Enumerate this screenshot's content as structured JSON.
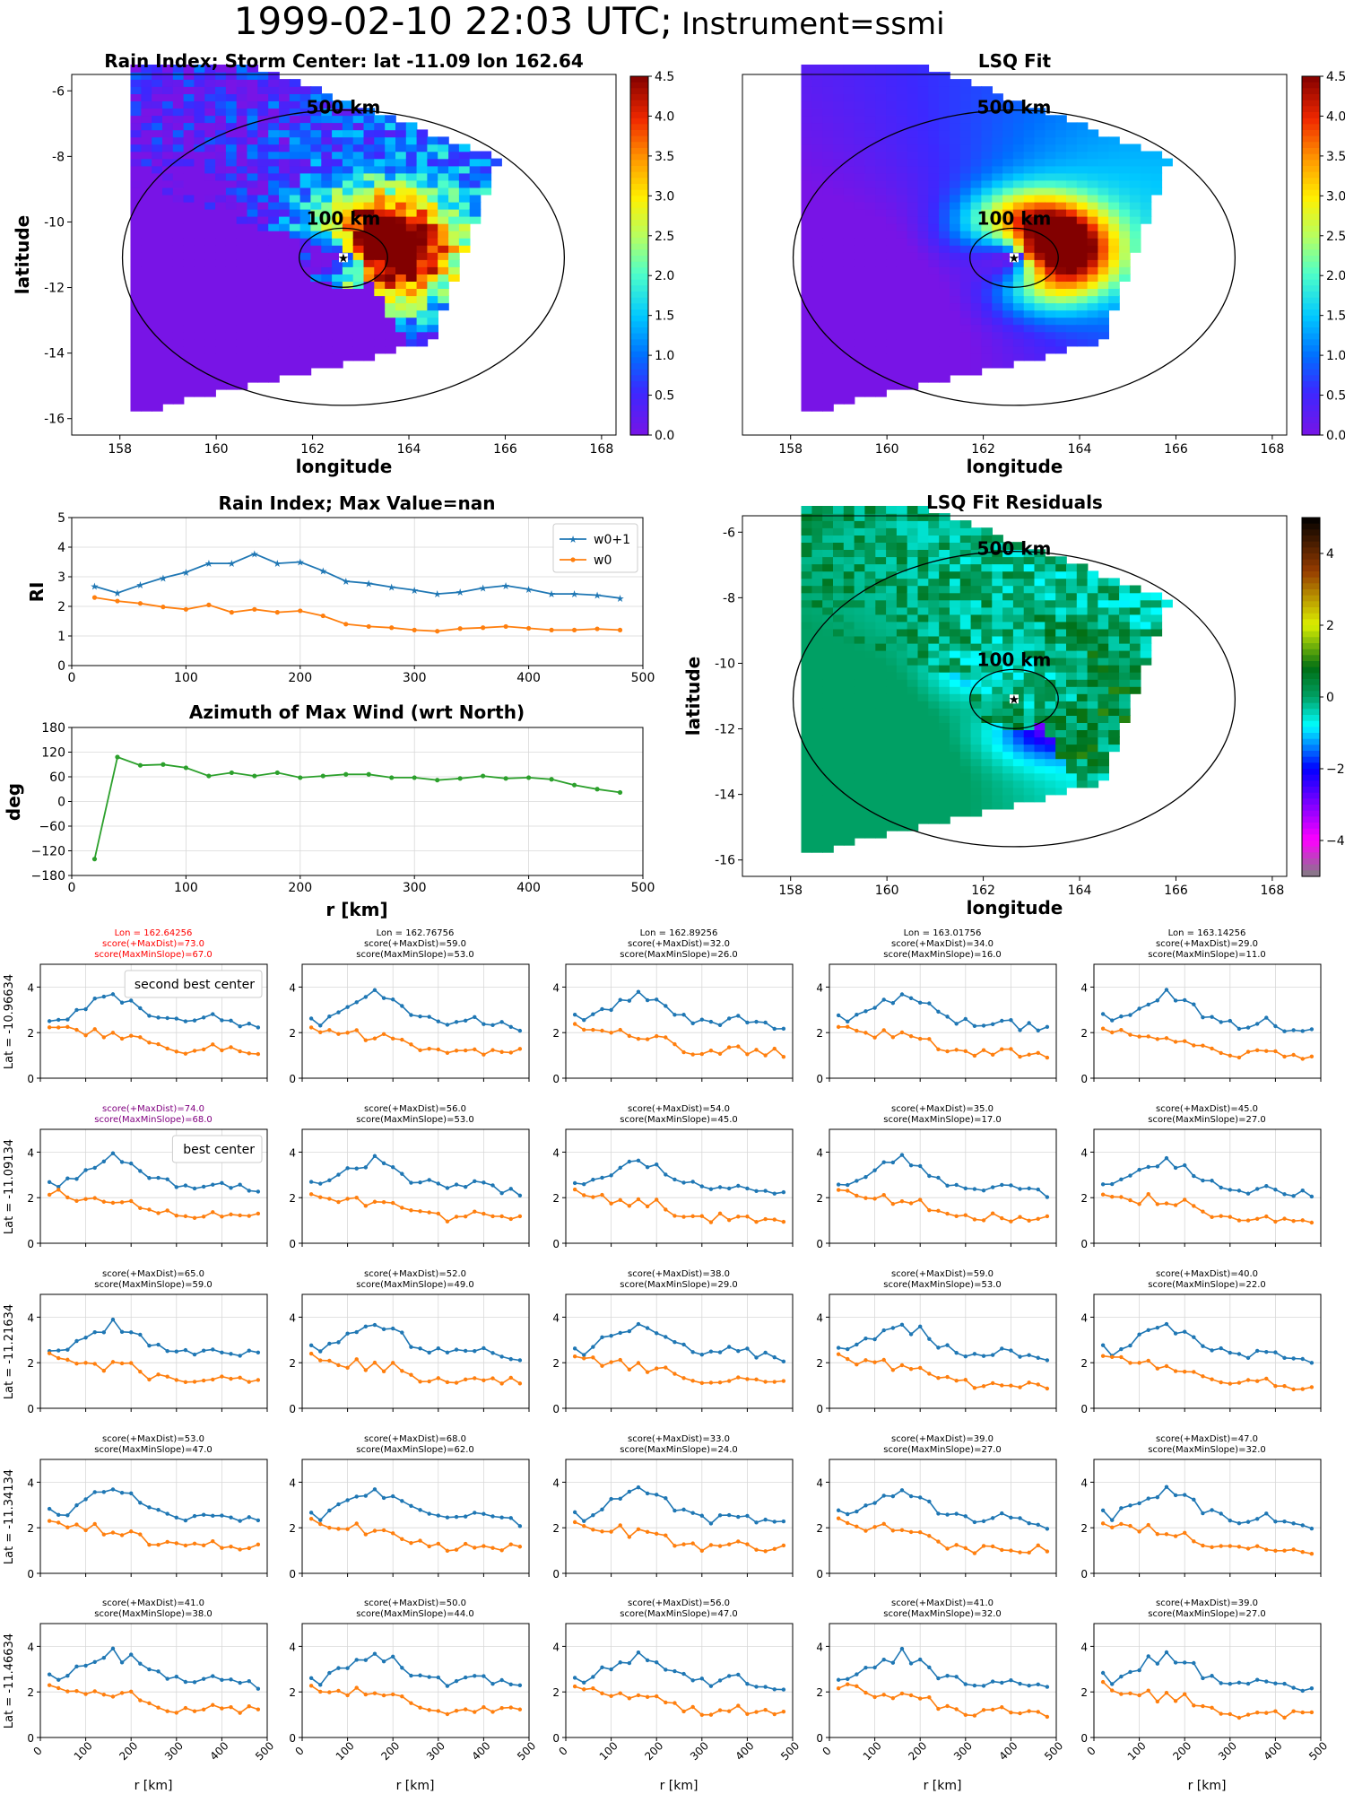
{
  "figure": {
    "suptitle_main": "1999-02-10 22:03 UTC;",
    "suptitle_sub": "Instrument=ssmi"
  },
  "maps": {
    "rain_index": {
      "title": "Rain Index; Storm Center: lat -11.09 lon 162.64",
      "xlabel": "longitude",
      "ylabel": "latitude",
      "xticks": [
        "158",
        "160",
        "162",
        "164",
        "166",
        "168"
      ],
      "yticks": [
        "-6",
        "-8",
        "-10",
        "-12",
        "-14",
        "-16"
      ],
      "cbar_ticks": [
        "0.0",
        "0.5",
        "1.0",
        "1.5",
        "2.0",
        "2.5",
        "3.0",
        "3.5",
        "4.0",
        "4.5"
      ],
      "ring_labels": [
        "500 km",
        "100 km"
      ]
    },
    "lsq_fit": {
      "title": "LSQ Fit",
      "xlabel": "longitude",
      "xticks": [
        "158",
        "160",
        "162",
        "164",
        "166",
        "168"
      ],
      "cbar_ticks": [
        "0.0",
        "0.5",
        "1.0",
        "1.5",
        "2.0",
        "2.5",
        "3.0",
        "3.5",
        "4.0",
        "4.5"
      ],
      "ring_labels": [
        "500 km",
        "100 km"
      ]
    },
    "residuals": {
      "title": "LSQ Fit Residuals",
      "xlabel": "longitude",
      "ylabel": "latitude",
      "xticks": [
        "158",
        "160",
        "162",
        "164",
        "166",
        "168"
      ],
      "yticks": [
        "-6",
        "-8",
        "-10",
        "-12",
        "-14",
        "-16"
      ],
      "cbar_ticks": [
        "4",
        "2",
        "0",
        "-2",
        "-4"
      ],
      "ring_labels": [
        "500 km",
        "100 km"
      ]
    }
  },
  "chart_data": [
    {
      "type": "line",
      "title": "Rain Index; Max Value=nan",
      "ylabel": "RI",
      "xlim": [
        0,
        500
      ],
      "ylim": [
        0,
        5
      ],
      "xticks": [
        "0",
        "100",
        "200",
        "300",
        "400",
        "500"
      ],
      "yticks": [
        "0",
        "1",
        "2",
        "3",
        "4",
        "5"
      ],
      "legend": "top-right",
      "x": [
        20,
        40,
        60,
        80,
        100,
        120,
        140,
        160,
        180,
        200,
        220,
        240,
        260,
        280,
        300,
        320,
        340,
        360,
        380,
        400,
        420,
        440,
        460,
        480
      ],
      "series": [
        {
          "name": "w0+1",
          "color": "#1f77b4",
          "marker": "star",
          "values": [
            2.68,
            2.45,
            2.72,
            2.96,
            3.15,
            3.45,
            3.45,
            3.78,
            3.45,
            3.5,
            3.2,
            2.85,
            2.78,
            2.65,
            2.55,
            2.42,
            2.48,
            2.62,
            2.7,
            2.58,
            2.42,
            2.42,
            2.38,
            2.28
          ]
        },
        {
          "name": "w0",
          "color": "#ff7f0e",
          "marker": "dot",
          "values": [
            2.3,
            2.18,
            2.1,
            1.98,
            1.9,
            2.05,
            1.8,
            1.9,
            1.8,
            1.85,
            1.68,
            1.4,
            1.32,
            1.28,
            1.2,
            1.16,
            1.25,
            1.28,
            1.32,
            1.26,
            1.2,
            1.2,
            1.24,
            1.2
          ]
        }
      ]
    },
    {
      "type": "line",
      "title": "Azimuth of Max Wind (wrt North)",
      "ylabel": "deg",
      "xlabel": "r [km]",
      "xlim": [
        0,
        500
      ],
      "ylim": [
        -180,
        180
      ],
      "xticks": [
        "0",
        "100",
        "200",
        "300",
        "400",
        "500"
      ],
      "yticks": [
        "180",
        "120",
        "60",
        "0",
        "-60",
        "-120",
        "-180"
      ],
      "x": [
        20,
        40,
        60,
        80,
        100,
        120,
        140,
        160,
        180,
        200,
        220,
        240,
        260,
        280,
        300,
        320,
        340,
        360,
        380,
        400,
        420,
        440,
        460,
        480
      ],
      "series": [
        {
          "color": "#2ca02c",
          "values": [
            -140,
            108,
            88,
            90,
            82,
            62,
            70,
            62,
            70,
            58,
            62,
            66,
            66,
            58,
            58,
            52,
            56,
            62,
            56,
            58,
            54,
            40,
            30,
            22
          ]
        }
      ]
    },
    {
      "type": "line",
      "grid": {
        "rows": 5,
        "cols": 5
      },
      "xlim": [
        0,
        500
      ],
      "ylim": [
        0,
        5
      ],
      "xlabel": "r [km]",
      "xticks": [
        "0",
        "100",
        "200",
        "300",
        "400",
        "500"
      ],
      "yticks": [
        "0",
        "2",
        "4"
      ],
      "row_labels": [
        "Lat = -10.96634",
        "Lat = -11.09134",
        "Lat = -11.21634",
        "Lat = -11.34134",
        "Lat = -11.46634"
      ],
      "col_lons": [
        "Lon = 162.64256",
        "Lon = 162.76756",
        "Lon = 162.89256",
        "Lon = 163.01756",
        "Lon = 163.14256"
      ],
      "scores": [
        [
          [
            "score(+MaxDist)=73.0",
            "score(MaxMinSlope)=67.0"
          ],
          [
            "score(+MaxDist)=59.0",
            "score(MaxMinSlope)=53.0"
          ],
          [
            "score(+MaxDist)=32.0",
            "score(MaxMinSlope)=26.0"
          ],
          [
            "score(+MaxDist)=34.0",
            "score(MaxMinSlope)=16.0"
          ],
          [
            "score(+MaxDist)=29.0",
            "score(MaxMinSlope)=11.0"
          ]
        ],
        [
          [
            "score(+MaxDist)=74.0",
            "score(MaxMinSlope)=68.0"
          ],
          [
            "score(+MaxDist)=56.0",
            "score(MaxMinSlope)=53.0"
          ],
          [
            "score(+MaxDist)=54.0",
            "score(MaxMinSlope)=45.0"
          ],
          [
            "score(+MaxDist)=35.0",
            "score(MaxMinSlope)=17.0"
          ],
          [
            "score(+MaxDist)=45.0",
            "score(MaxMinSlope)=27.0"
          ]
        ],
        [
          [
            "score(+MaxDist)=65.0",
            "score(MaxMinSlope)=59.0"
          ],
          [
            "score(+MaxDist)=52.0",
            "score(MaxMinSlope)=49.0"
          ],
          [
            "score(+MaxDist)=38.0",
            "score(MaxMinSlope)=29.0"
          ],
          [
            "score(+MaxDist)=59.0",
            "score(MaxMinSlope)=53.0"
          ],
          [
            "score(+MaxDist)=40.0",
            "score(MaxMinSlope)=22.0"
          ]
        ],
        [
          [
            "score(+MaxDist)=53.0",
            "score(MaxMinSlope)=47.0"
          ],
          [
            "score(+MaxDist)=68.0",
            "score(MaxMinSlope)=62.0"
          ],
          [
            "score(+MaxDist)=33.0",
            "score(MaxMinSlope)=24.0"
          ],
          [
            "score(+MaxDist)=39.0",
            "score(MaxMinSlope)=27.0"
          ],
          [
            "score(+MaxDist)=47.0",
            "score(MaxMinSlope)=32.0"
          ]
        ],
        [
          [
            "score(+MaxDist)=41.0",
            "score(MaxMinSlope)=38.0"
          ],
          [
            "score(+MaxDist)=50.0",
            "score(MaxMinSlope)=44.0"
          ],
          [
            "score(+MaxDist)=56.0",
            "score(MaxMinSlope)=47.0"
          ],
          [
            "score(+MaxDist)=41.0",
            "score(MaxMinSlope)=32.0"
          ],
          [
            "score(+MaxDist)=39.0",
            "score(MaxMinSlope)=27.0"
          ]
        ]
      ],
      "annotations": [
        {
          "row": 0,
          "col": 0,
          "text": "second best center",
          "color": "#ff0000"
        },
        {
          "row": 1,
          "col": 0,
          "text": "best center",
          "color": "#800080"
        }
      ]
    }
  ]
}
